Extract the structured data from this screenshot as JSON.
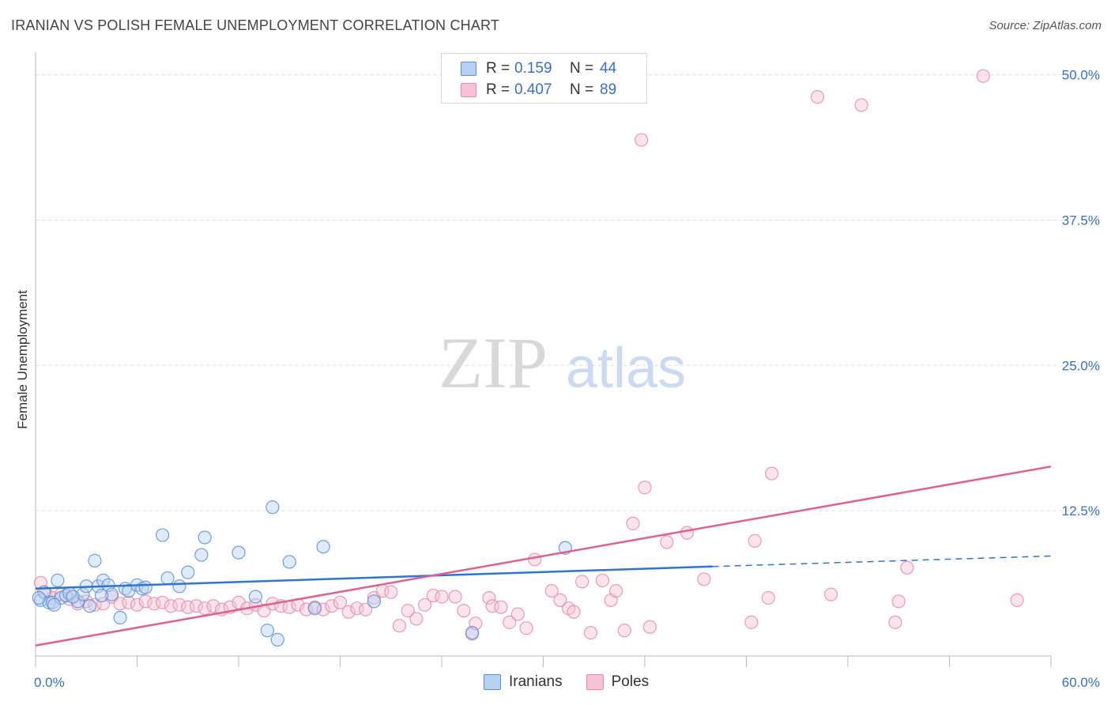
{
  "header": {
    "title": "IRANIAN VS POLISH FEMALE UNEMPLOYMENT CORRELATION CHART",
    "source": "Source: ZipAtlas.com"
  },
  "legend": {
    "rows": [
      {
        "r_label": "R =",
        "r_value": "0.159",
        "n_label": "N =",
        "n_value": "44"
      },
      {
        "r_label": "R =",
        "r_value": "0.407",
        "n_label": "N =",
        "n_value": "89"
      }
    ],
    "series_names": [
      "Iranians",
      "Poles"
    ]
  },
  "watermark": {
    "zip": "ZIP",
    "atlas": "atlas"
  },
  "colors": {
    "iranians_fill": "#b7d0f3",
    "iranians_stroke": "#5a8fd6",
    "iranians_line": "#2f74d0",
    "poles_fill": "#f7c3d3",
    "poles_stroke": "#e889a8",
    "poles_line": "#e0608c",
    "tick": "#3a6fc4",
    "grid": "#dcdcdc"
  },
  "chart_data": {
    "type": "scatter",
    "title": "IRANIAN VS POLISH FEMALE UNEMPLOYMENT CORRELATION CHART",
    "xlabel": "",
    "ylabel": "Female Unemployment",
    "xlim": [
      0,
      60
    ],
    "ylim": [
      0,
      51
    ],
    "x_tick_labels": [
      "0.0%",
      "60.0%"
    ],
    "y_ticks": [
      12.5,
      25.0,
      37.5,
      50.0
    ],
    "y_tick_labels": [
      "12.5%",
      "25.0%",
      "37.5%",
      "50.0%"
    ],
    "series": [
      {
        "name": "Iranians",
        "r": 0.159,
        "n": 44,
        "points": [
          [
            0.3,
            4.8
          ],
          [
            0.5,
            5.5
          ],
          [
            0.8,
            4.6
          ],
          [
            1.0,
            4.6
          ],
          [
            1.3,
            6.5
          ],
          [
            1.5,
            5.0
          ],
          [
            1.8,
            5.2
          ],
          [
            2.0,
            5.4
          ],
          [
            2.5,
            4.7
          ],
          [
            2.8,
            5.3
          ],
          [
            3.0,
            6.0
          ],
          [
            3.2,
            4.3
          ],
          [
            3.5,
            8.2
          ],
          [
            3.7,
            6.0
          ],
          [
            4.0,
            6.5
          ],
          [
            4.3,
            6.1
          ],
          [
            4.5,
            5.3
          ],
          [
            5.0,
            3.3
          ],
          [
            5.3,
            5.8
          ],
          [
            5.5,
            5.6
          ],
          [
            6.0,
            6.1
          ],
          [
            6.3,
            5.8
          ],
          [
            7.5,
            10.4
          ],
          [
            7.8,
            6.7
          ],
          [
            8.5,
            6.0
          ],
          [
            9.0,
            7.2
          ],
          [
            9.8,
            8.7
          ],
          [
            10.0,
            10.2
          ],
          [
            12.0,
            8.9
          ],
          [
            13.0,
            5.1
          ],
          [
            13.7,
            2.2
          ],
          [
            14.0,
            12.8
          ],
          [
            14.3,
            1.4
          ],
          [
            15.0,
            8.1
          ],
          [
            16.5,
            4.1
          ],
          [
            17.0,
            9.4
          ],
          [
            20.0,
            4.7
          ],
          [
            25.8,
            2.0
          ],
          [
            31.3,
            9.3
          ],
          [
            0.2,
            5.0
          ],
          [
            1.1,
            4.4
          ],
          [
            2.2,
            5.1
          ],
          [
            6.5,
            5.9
          ],
          [
            3.9,
            5.2
          ]
        ]
      },
      {
        "name": "Poles",
        "r": 0.407,
        "n": 89,
        "points": [
          [
            0.3,
            6.3
          ],
          [
            0.6,
            5.4
          ],
          [
            1.0,
            5.0
          ],
          [
            1.5,
            5.3
          ],
          [
            2.0,
            4.9
          ],
          [
            2.5,
            4.5
          ],
          [
            3.0,
            4.7
          ],
          [
            3.5,
            4.4
          ],
          [
            4.0,
            4.5
          ],
          [
            4.5,
            5.1
          ],
          [
            5.0,
            4.5
          ],
          [
            5.5,
            4.6
          ],
          [
            6.0,
            4.4
          ],
          [
            6.5,
            4.7
          ],
          [
            7.0,
            4.5
          ],
          [
            7.5,
            4.6
          ],
          [
            8.0,
            4.3
          ],
          [
            8.5,
            4.4
          ],
          [
            9.0,
            4.2
          ],
          [
            9.5,
            4.3
          ],
          [
            10.0,
            4.1
          ],
          [
            10.5,
            4.3
          ],
          [
            11.0,
            4.0
          ],
          [
            11.5,
            4.2
          ],
          [
            12.0,
            4.6
          ],
          [
            12.5,
            4.1
          ],
          [
            13.0,
            4.4
          ],
          [
            13.5,
            3.9
          ],
          [
            14.0,
            4.5
          ],
          [
            14.5,
            4.3
          ],
          [
            15.0,
            4.2
          ],
          [
            15.5,
            4.4
          ],
          [
            16.0,
            4.0
          ],
          [
            16.5,
            4.2
          ],
          [
            17.0,
            4.0
          ],
          [
            17.5,
            4.3
          ],
          [
            18.0,
            4.6
          ],
          [
            18.5,
            3.8
          ],
          [
            19.0,
            4.1
          ],
          [
            19.5,
            4.0
          ],
          [
            20.0,
            5.0
          ],
          [
            20.5,
            5.6
          ],
          [
            21.0,
            5.5
          ],
          [
            21.5,
            2.6
          ],
          [
            22.0,
            3.9
          ],
          [
            22.5,
            3.2
          ],
          [
            23.0,
            4.4
          ],
          [
            23.5,
            5.2
          ],
          [
            24.0,
            5.1
          ],
          [
            24.8,
            5.1
          ],
          [
            25.3,
            3.9
          ],
          [
            25.8,
            1.9
          ],
          [
            26.0,
            2.8
          ],
          [
            26.8,
            5.0
          ],
          [
            27.0,
            4.3
          ],
          [
            27.5,
            4.2
          ],
          [
            28.0,
            2.9
          ],
          [
            28.5,
            3.6
          ],
          [
            29.0,
            2.4
          ],
          [
            29.5,
            8.3
          ],
          [
            30.5,
            5.6
          ],
          [
            31.0,
            4.8
          ],
          [
            31.5,
            4.1
          ],
          [
            31.8,
            3.8
          ],
          [
            32.3,
            6.4
          ],
          [
            32.8,
            2.0
          ],
          [
            33.5,
            6.5
          ],
          [
            34.0,
            4.8
          ],
          [
            34.3,
            5.6
          ],
          [
            34.8,
            2.2
          ],
          [
            35.3,
            11.4
          ],
          [
            36.0,
            14.5
          ],
          [
            36.3,
            2.5
          ],
          [
            37.3,
            9.8
          ],
          [
            38.5,
            10.6
          ],
          [
            39.5,
            6.6
          ],
          [
            42.3,
            2.9
          ],
          [
            42.5,
            9.9
          ],
          [
            43.3,
            5.0
          ],
          [
            43.5,
            15.7
          ],
          [
            46.2,
            48.1
          ],
          [
            47.0,
            5.3
          ],
          [
            48.8,
            47.4
          ],
          [
            50.8,
            2.9
          ],
          [
            51.0,
            4.7
          ],
          [
            51.5,
            7.6
          ],
          [
            56.0,
            49.9
          ],
          [
            58.0,
            4.8
          ],
          [
            35.8,
            44.4
          ]
        ]
      }
    ],
    "trend_lines": [
      {
        "series": "Iranians",
        "x0": 0,
        "y0": 5.8,
        "x1": 40,
        "y1": 7.7,
        "dashed_to_x": 60,
        "dashed_to_y": 8.6
      },
      {
        "series": "Poles",
        "x0": 0,
        "y0": 0.9,
        "x1": 60,
        "y1": 16.3
      }
    ]
  }
}
